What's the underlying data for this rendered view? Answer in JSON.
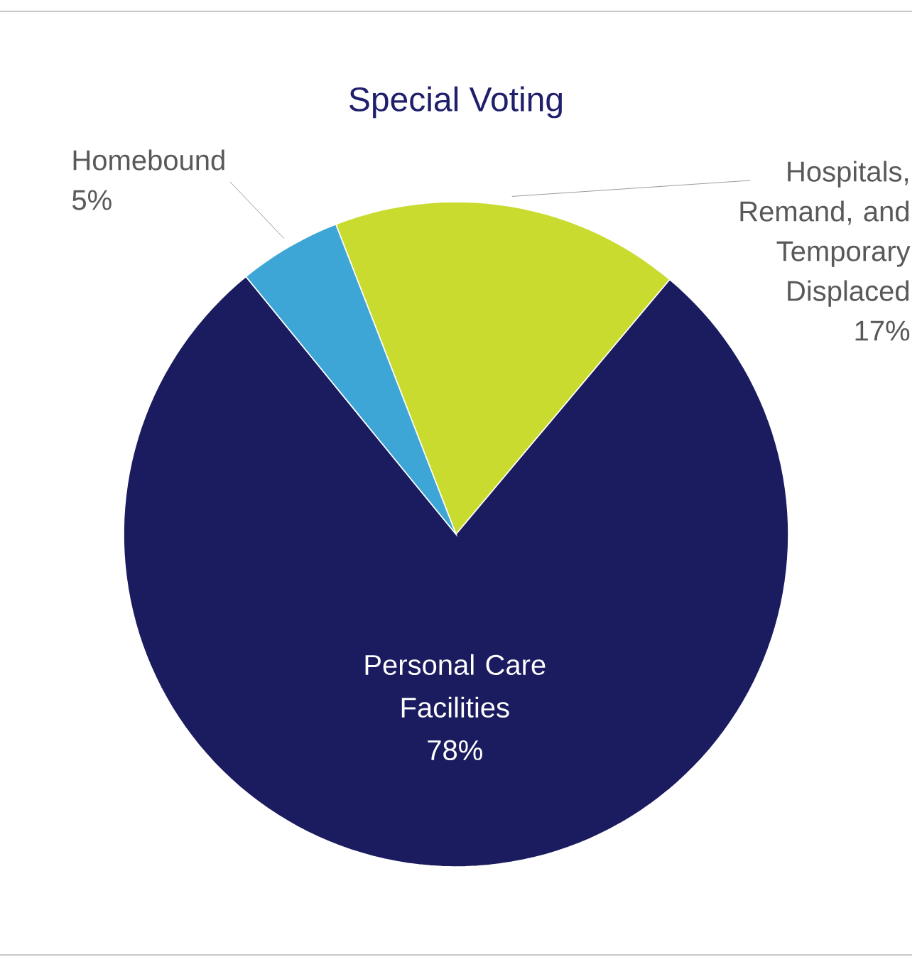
{
  "chart_data": {
    "type": "pie",
    "title": "Special Voting",
    "categories": [
      "Hospitals, Remand, and Temporary Displaced",
      "Personal Care Facilities",
      "Homebound"
    ],
    "values": [
      17,
      78,
      5
    ],
    "value_labels": [
      "17%",
      "78%",
      "5%"
    ],
    "colors": [
      "#cadb2f",
      "#1b1b5f",
      "#3ea6d6"
    ]
  }
}
